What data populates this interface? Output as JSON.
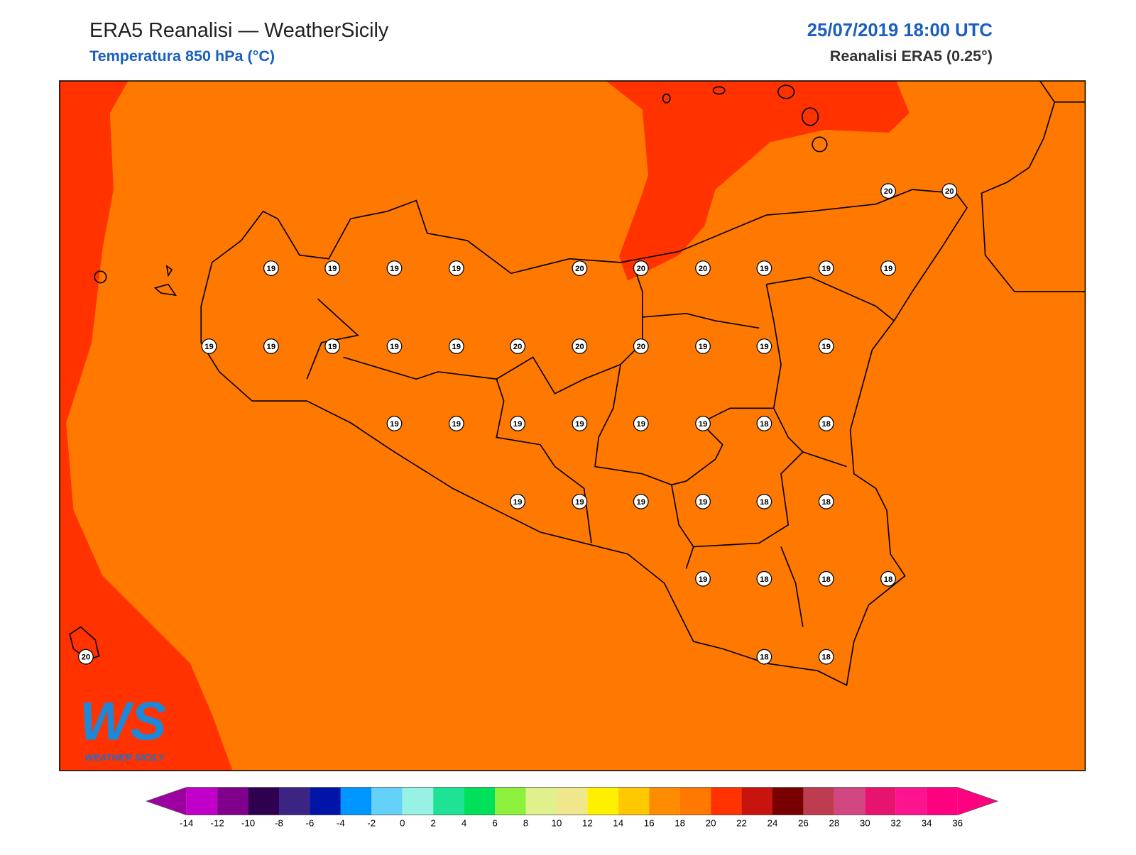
{
  "header": {
    "title": "ERA5 Reanalisi — WeatherSicily",
    "subtitle": "Temperatura 850 hPa (°C)",
    "datetime": "25/07/2019 18:00 UTC",
    "source": "Reanalisi ERA5 (0.25°)"
  },
  "stations": {
    "values": [
      20,
      20,
      19,
      19,
      19,
      19,
      20,
      20,
      20,
      19,
      19,
      19,
      19,
      19,
      19,
      19,
      19,
      20,
      20,
      20,
      19,
      19,
      19,
      19,
      19,
      19,
      19,
      19,
      19,
      18,
      18,
      19,
      19,
      19,
      19,
      18,
      18,
      19,
      18,
      18,
      18,
      18,
      18,
      20
    ]
  },
  "colorbar": {
    "ticks": [
      -14,
      -12,
      -10,
      -8,
      -6,
      -4,
      -2,
      0,
      2,
      4,
      6,
      8,
      10,
      12,
      14,
      16,
      18,
      20,
      22,
      24,
      26,
      28,
      30,
      32,
      34,
      36
    ],
    "colors": [
      "#9c00a0",
      "#c000c8",
      "#80008c",
      "#300050",
      "#3c2484",
      "#0014a8",
      "#0096ff",
      "#64d2f8",
      "#98f2e4",
      "#1ee294",
      "#00e05a",
      "#8cf03c",
      "#e0f08c",
      "#f0e68c",
      "#fff000",
      "#ffc800",
      "#ff8c00",
      "#ff7800",
      "#ff3200",
      "#c8140f",
      "#780000",
      "#be3c50",
      "#d24682",
      "#e6146e",
      "#ff1490",
      "#ff0080"
    ]
  },
  "logo": {
    "mark": "WS",
    "name": "WEATHER SICILY"
  }
}
